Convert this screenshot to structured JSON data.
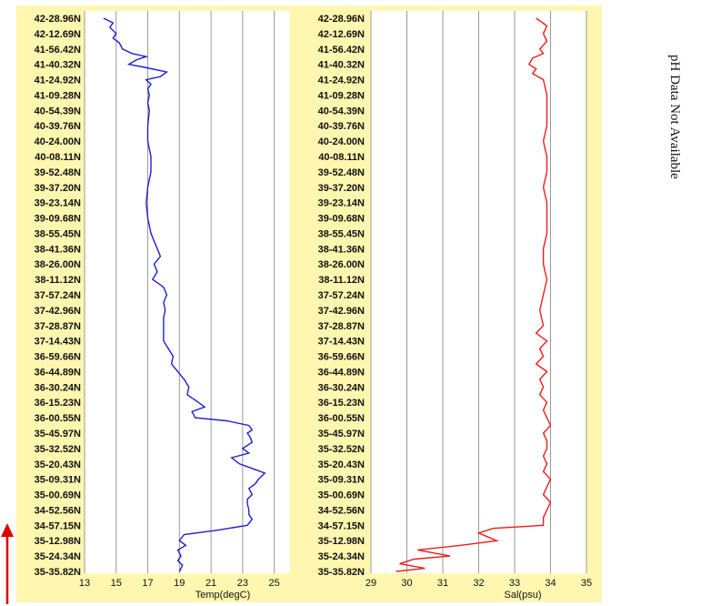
{
  "latitude_labels": [
    "42-28.96N",
    "42-12.69N",
    "41-56.42N",
    "41-40.32N",
    "41-24.92N",
    "41-09.28N",
    "40-54.39N",
    "40-39.76N",
    "40-24.00N",
    "40-08.11N",
    "39-52.48N",
    "39-37.20N",
    "39-23.14N",
    "39-09.68N",
    "38-55.45N",
    "38-41.36N",
    "38-26.00N",
    "38-11.12N",
    "37-57.24N",
    "37-42.96N",
    "37-28.87N",
    "37-14.43N",
    "36-59.66N",
    "36-44.89N",
    "36-30.24N",
    "36-15.23N",
    "36-00.55N",
    "35-45.97N",
    "35-32.52N",
    "35-20.43N",
    "35-09.31N",
    "35-00.69N",
    "34-52.56N",
    "34-57.15N",
    "35-12.98N",
    "35-24.34N",
    "35-35.82N"
  ],
  "side_note": "pH Data Not Available",
  "colors": {
    "panel_bg": "#fff7b0",
    "grid": "#999999",
    "temp_line": "#1f1fd6",
    "sal_line": "#ee1c1c",
    "arrow": "#dd0000"
  },
  "chart_data": [
    {
      "type": "line",
      "xlabel": "Temp(degC)",
      "xlim": [
        13,
        26
      ],
      "xticks": [
        13,
        15,
        17,
        19,
        21,
        23,
        25
      ],
      "y_labels_ref": "latitude_labels",
      "series": [
        {
          "y_index": [
            0,
            0.3,
            0.6,
            1,
            1.3,
            1.6,
            2,
            2.3,
            2.5,
            2.7,
            3,
            3.2,
            3.5,
            3.8,
            4,
            4.3,
            4.6,
            5,
            5.5,
            6,
            7,
            8,
            9,
            10,
            11,
            12,
            13,
            14,
            15,
            15.5,
            16,
            16.5,
            17,
            17.5,
            18,
            18.5,
            19,
            19.5,
            20,
            20.5,
            21,
            21.5,
            22,
            22.5,
            23,
            23.5,
            24,
            24.5,
            25,
            25.3,
            25.6,
            26,
            26.2,
            26.5,
            26.8,
            27,
            27.3,
            27.6,
            28,
            28.3,
            28.6,
            29,
            29.3,
            29.6,
            30,
            30.3,
            30.6,
            31,
            31.3,
            31.6,
            32,
            32.3,
            32.6,
            33,
            33.3,
            33.6,
            34,
            34.3,
            34.6,
            35,
            35.3,
            35.6,
            36
          ],
          "values": [
            14.2,
            14.8,
            14.6,
            15.0,
            14.8,
            15.2,
            15.4,
            16.0,
            16.9,
            16.3,
            15.8,
            16.8,
            18.2,
            17.8,
            16.9,
            17.2,
            17.0,
            17.1,
            17.0,
            17.1,
            17.0,
            17.0,
            17.2,
            17.2,
            17.0,
            16.9,
            17.0,
            17.2,
            17.6,
            17.8,
            17.4,
            17.6,
            17.3,
            18.0,
            18.2,
            18.0,
            18.1,
            18.0,
            18.0,
            18.0,
            18.0,
            18.3,
            18.6,
            18.5,
            18.9,
            19.3,
            19.6,
            19.5,
            20.2,
            20.6,
            19.8,
            20.0,
            22.0,
            23.4,
            23.6,
            23.3,
            23.5,
            23.6,
            23.0,
            23.4,
            22.3,
            22.8,
            23.6,
            24.4,
            24.0,
            23.8,
            23.4,
            23.6,
            23.3,
            23.3,
            23.4,
            23.4,
            23.6,
            23.3,
            21.5,
            19.3,
            19.0,
            19.4,
            18.9,
            19.1,
            18.9,
            19.2,
            19.0
          ]
        }
      ]
    },
    {
      "type": "line",
      "xlabel": "Sal(psu)",
      "xlim": [
        29,
        35
      ],
      "xticks": [
        29,
        30,
        31,
        32,
        33,
        34,
        35
      ],
      "y_labels_ref": "latitude_labels",
      "series": [
        {
          "y_index": [
            0,
            0.5,
            1,
            1.5,
            2,
            2.3,
            2.6,
            3,
            3.3,
            3.6,
            4,
            5,
            6,
            7,
            8,
            9,
            10,
            11,
            12,
            13,
            14,
            15,
            16,
            17,
            18,
            19,
            20,
            20.5,
            21,
            21.5,
            22,
            22.5,
            23,
            23.5,
            24,
            24.5,
            25,
            25.5,
            26,
            26.5,
            27,
            27.5,
            28,
            28.5,
            29,
            29.5,
            30,
            30.5,
            31,
            31.5,
            32,
            32.5,
            33,
            33.2,
            33.5,
            33.8,
            34,
            34.3,
            34.6,
            35,
            35.2,
            35.5,
            35.8,
            36
          ],
          "values": [
            33.6,
            33.9,
            33.8,
            33.9,
            33.7,
            33.8,
            33.5,
            33.4,
            33.6,
            33.5,
            33.8,
            33.9,
            33.9,
            33.9,
            33.8,
            33.9,
            33.9,
            33.8,
            33.9,
            33.9,
            33.9,
            33.8,
            33.8,
            33.9,
            33.8,
            33.7,
            33.8,
            33.6,
            33.9,
            33.7,
            33.8,
            33.6,
            33.9,
            33.7,
            33.8,
            33.7,
            33.9,
            33.8,
            33.9,
            34.0,
            33.8,
            33.9,
            33.9,
            33.8,
            33.9,
            33.8,
            34.0,
            33.9,
            33.8,
            34.0,
            33.9,
            33.8,
            33.8,
            32.4,
            32.0,
            32.3,
            32.5,
            31.5,
            30.3,
            31.2,
            30.2,
            29.8,
            30.5,
            29.7
          ]
        }
      ]
    }
  ]
}
